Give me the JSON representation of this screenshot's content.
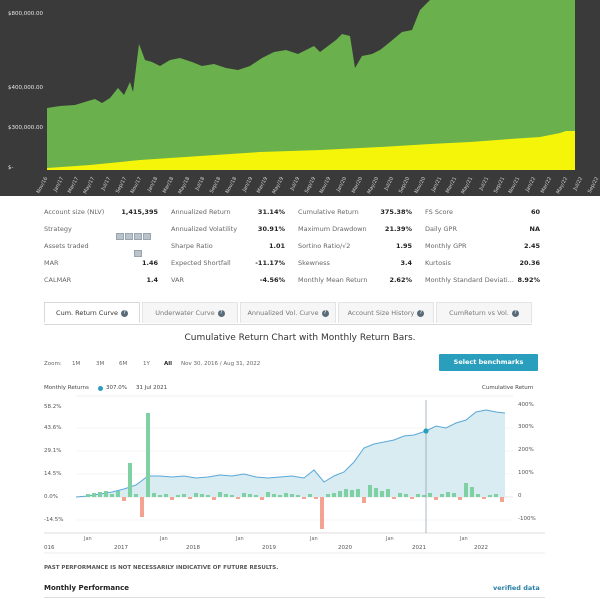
{
  "top_chart": {
    "y_ticks": [
      "$800,000.00",
      "$400,000.00",
      "$300,000.00",
      "$-"
    ],
    "x_ticks": [
      "Nov/16",
      "Jan/17",
      "Mar/17",
      "May/17",
      "Jul/17",
      "Sep/17",
      "Nov/17",
      "Jan/18",
      "Mar/18",
      "May/18",
      "Jul/18",
      "Sep/18",
      "Nov/18",
      "Jan/19",
      "Mar/19",
      "May/19",
      "Jul/19",
      "Sep/19",
      "Nov/19",
      "Jan/20",
      "Mar/20",
      "May/20",
      "Jul/20",
      "Sep/20",
      "Nov/20",
      "Jan/21",
      "Mar/21",
      "May/21",
      "Jul/21",
      "Sep/21",
      "Nov/21",
      "Jan/22",
      "Mar/22",
      "May/22",
      "Jul/22",
      "Sep/22"
    ],
    "colors": {
      "background": "#3a3a3a",
      "account_area": "#6ab04c",
      "deposits_area": "#f5f50a"
    }
  },
  "stats": {
    "rows": [
      [
        {
          "label": "Account size (NLV)",
          "value": "1,415,395"
        },
        {
          "label": "Annualized Return",
          "value": "31.14%"
        },
        {
          "label": "Cumulative Return",
          "value": "375.38%"
        },
        {
          "label": "FS Score",
          "value": "60"
        }
      ],
      [
        {
          "label": "Strategy",
          "value": ""
        },
        {
          "label": "Annualized Volatility",
          "value": "30.91%"
        },
        {
          "label": "Maximum Drawdown",
          "value": "21.39%"
        },
        {
          "label": "Daily GPR",
          "value": "NA"
        }
      ],
      [
        {
          "label": "Assets traded",
          "value": ""
        },
        {
          "label": "Sharpe Ratio",
          "value": "1.01"
        },
        {
          "label": "Sortino Ratio/√2",
          "value": "1.95"
        },
        {
          "label": "Monthly GPR",
          "value": "2.45"
        }
      ],
      [
        {
          "label": "MAR",
          "value": "1.46"
        },
        {
          "label": "Expected Shortfall",
          "value": "-11.17%"
        },
        {
          "label": "Skewness",
          "value": "3.4"
        },
        {
          "label": "Kurtosis",
          "value": "20.36"
        }
      ],
      [
        {
          "label": "CALMAR",
          "value": "1.4"
        },
        {
          "label": "VAR",
          "value": "-4.56%"
        },
        {
          "label": "Monthly Mean Return",
          "value": "2.62%"
        },
        {
          "label": "Monthly Standard Deviati...",
          "value": "8.92%"
        }
      ]
    ]
  },
  "tabs": [
    {
      "label": "Cum. Return Curve",
      "active": true
    },
    {
      "label": "Underwater Curve",
      "active": false
    },
    {
      "label": "Annualized Vol. Curve",
      "active": false
    },
    {
      "label": "Account Size History",
      "active": false
    },
    {
      "label": "CumReturn vs Vol.",
      "active": false
    }
  ],
  "cum_chart": {
    "title": "Cumulative Return Chart with Monthly Return Bars.",
    "zoom_label": "Zoom:",
    "zoom_options": [
      "1M",
      "3M",
      "6M",
      "1Y",
      "All"
    ],
    "date_range": "Nov 30, 2016 / Aug 31, 2022",
    "benchmark_button": "Select benchmarks",
    "left_axis_title": "Monthly Returns",
    "tooltip_value": "307.0%",
    "tooltip_date": "31 Jul 2021",
    "right_axis_title": "Cumulative Return",
    "left_ticks": [
      "58.2%",
      "43.6%",
      "29.1%",
      "14.5%",
      "0.0%",
      "-14.5%"
    ],
    "right_ticks": [
      "400%",
      "300%",
      "200%",
      "100%",
      "0",
      "-100%"
    ],
    "year_labels": [
      "016",
      "2017",
      "2018",
      "2019",
      "2020",
      "2021",
      "2022"
    ],
    "year_labels_raw": [
      "016",
      "2017",
      "2018",
      "2019",
      "2020",
      "2021",
      "2022"
    ],
    "jan_label": "Jan",
    "colors": {
      "line": "#5aa8d8",
      "area": "#d8ecf2",
      "pos_bar": "#7fd1a3",
      "neg_bar": "#f2a391",
      "crosshair": "#7a8a98"
    }
  },
  "disclaimer": "PAST PERFORMANCE IS NOT NECESSARILY INDICATIVE OF FUTURE RESULTS.",
  "monthly_performance": {
    "title": "Monthly Performance",
    "verified": "verified data"
  }
}
